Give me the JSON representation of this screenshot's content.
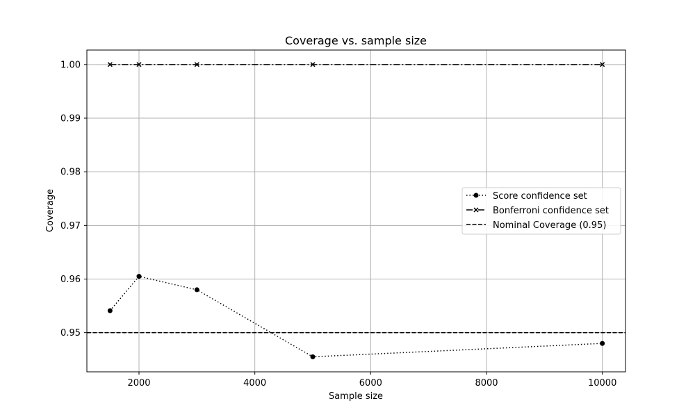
{
  "chart_data": {
    "type": "line",
    "title": "Coverage vs. sample size",
    "xlabel": "Sample size",
    "ylabel": "Coverage",
    "xlim": [
      1100,
      10400
    ],
    "ylim": [
      0.9427,
      1.0027
    ],
    "x_ticks": [
      2000,
      4000,
      6000,
      8000,
      10000
    ],
    "x_tick_labels": [
      "2000",
      "4000",
      "6000",
      "8000",
      "10000"
    ],
    "y_ticks": [
      0.95,
      0.96,
      0.97,
      0.98,
      0.99,
      1.0
    ],
    "y_tick_labels": [
      "0.95",
      "0.96",
      "0.97",
      "0.98",
      "0.99",
      "1.00"
    ],
    "grid": true,
    "legend_position": "center-right",
    "series": [
      {
        "name": "Score confidence set",
        "x": [
          1500,
          2000,
          3000,
          5000,
          10000
        ],
        "y": [
          0.9541,
          0.9605,
          0.958,
          0.9455,
          0.948
        ],
        "line_style": "dotted",
        "marker": "circle",
        "color": "#000000"
      },
      {
        "name": "Bonferroni confidence set",
        "x": [
          1500,
          2000,
          3000,
          5000,
          10000
        ],
        "y": [
          1.0,
          1.0,
          1.0,
          1.0,
          1.0
        ],
        "line_style": "dashdot",
        "marker": "x",
        "color": "#000000"
      }
    ],
    "reference_lines": [
      {
        "name": "Nominal Coverage (0.95)",
        "y": 0.95,
        "line_style": "dashed",
        "color": "#000000"
      }
    ]
  }
}
